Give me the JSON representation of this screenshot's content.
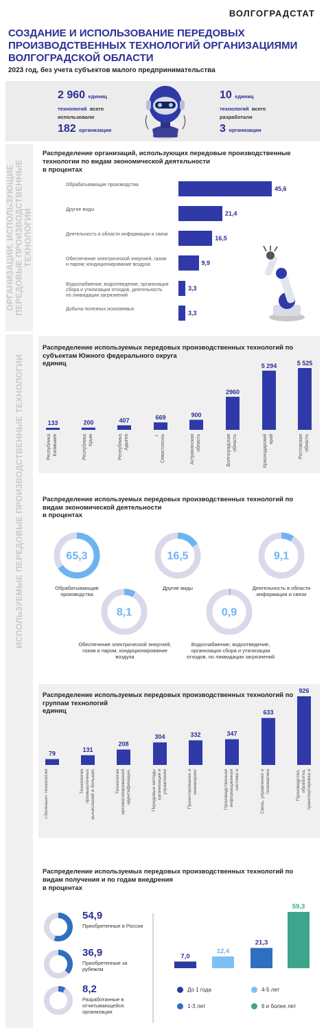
{
  "header": {
    "brand": "ВОЛГОГРАДСТАТ",
    "title": "СОЗДАНИЕ И ИСПОЛЬЗОВАНИЕ ПЕРЕДОВЫХ ПРОИЗВОДСТВЕННЫХ ТЕХНОЛОГИЙ ОРГАНИЗАЦИЯМИ ВОЛГОГРАДСКОЙ ОБЛАСТИ",
    "subtitle": "2023 год, без учета субъектов малого предпринимательства"
  },
  "summary": {
    "used_value": "2 960",
    "used_unit": "единиц",
    "used_text1": "технологий",
    "used_text2": "всего",
    "used_text3": "использовали",
    "used_orgs_value": "182",
    "used_orgs_unit": "организации",
    "dev_value": "10",
    "dev_unit": "единиц",
    "dev_text1": "технологий",
    "dev_text2": "всего",
    "dev_text3": "разработали",
    "dev_orgs_value": "3",
    "dev_orgs_unit": "организации"
  },
  "side_labels": {
    "orgs": "ОРГАНИЗАЦИИ, ИСПОЛЬЗУЮЩИЕ ПЕРЕДОВЫЕ ПРОИЗВОДСТВЕННЫЕ ТЕХНОЛОГИИ",
    "tech": "ИСПОЛЬЗУЕМЫЕ ПЕРЕДОВЫЕ ПРОИЗВОДСТВЕННЫЕ ТЕХНОЛОГИИ"
  },
  "colors": {
    "accent": "#2b2f93",
    "bar": "#2f3aa8",
    "light_blue": "#6db3f2",
    "mid_blue": "#2f6fc0",
    "teal": "#3fa48c",
    "donut_track": "#d9d9ea",
    "icons": [
      "robot-head-icon",
      "robot-arm-icon"
    ]
  },
  "chart_data": [
    {
      "type": "bar",
      "orientation": "horizontal",
      "title": "Распределение организаций, использующих передовые производственные технологии по видам экономической деятельности",
      "unit_label": "в процентах",
      "categories": [
        "Обрабатывающие производства",
        "Другие виды",
        "Деятельность в области информации и связи",
        "Обеспечение электрической энергией, газом и паром; кондиционирование воздуха",
        "Водоснабжение; водоотведение, организация сбора и утилизации отходов, деятельность по ликвидации загрязнений",
        "Добыча полезных ископаемых"
      ],
      "values": [
        45.6,
        21.4,
        16.5,
        9.9,
        3.3,
        3.3
      ],
      "value_labels": [
        "45,6",
        "21,4",
        "16,5",
        "9,9",
        "3,3",
        "3,3"
      ]
    },
    {
      "type": "bar",
      "title": "Распределение используемых передовых производственных технологий по субъектам Южного федерального округа",
      "unit_label": "единиц",
      "categories": [
        "Республика Калмыкия",
        "Республика Крым",
        "Республика Адыгея",
        "г. Севастополь",
        "Астраханская область",
        "Волгоградская область",
        "Краснодарский край",
        "Ростовская область"
      ],
      "values": [
        133,
        200,
        407,
        669,
        900,
        2960,
        5294,
        5525
      ],
      "value_labels": [
        "133",
        "200",
        "407",
        "669",
        "900",
        "2960",
        "5 294",
        "5 525"
      ],
      "ylim": [
        0,
        5525
      ]
    },
    {
      "type": "pie",
      "style": "donut",
      "title": "Распределение используемых передовых производственных технологий по видам экономической деятельности",
      "unit_label": "в процентах",
      "categories": [
        "Обрабатывающие производства",
        "Другие виды",
        "Деятельность в области информации и связи",
        "Обеспечение электрической энергией, газом и паром, кондиционирование воздуха",
        "Водоснабжение; водоотведение, организация сбора и утилизации отходов, по ликвидации загрязнений"
      ],
      "values": [
        65.3,
        16.5,
        9.1,
        8.1,
        0.9
      ],
      "value_labels": [
        "65,3",
        "16,5",
        "9,1",
        "8,1",
        "0,9"
      ]
    },
    {
      "type": "bar",
      "title": "Распределение используемых передовых производственных технологий по группам технологий",
      "unit_label": "единиц",
      "categories": [
        "«Зеленые» технологии",
        "Технологии промышленных вычислений и больших данных",
        "Технологии автоматизированной идентификации, наблюдения и/или контроля",
        "Передовые методы организации и управления производством",
        "Проектирование и инжиниринг",
        "Производственная информационная система и автоматизация управления производством",
        "Связь, управление и телематика",
        "Производство, обработка, транспортировка и сборка"
      ],
      "values": [
        79,
        131,
        208,
        304,
        332,
        347,
        633,
        926
      ],
      "value_labels": [
        "79",
        "131",
        "208",
        "304",
        "332",
        "347",
        "633",
        "926"
      ],
      "ylim": [
        0,
        926
      ]
    },
    {
      "type": "pie",
      "style": "donut",
      "title": "Распределение используемых передовых производственных технологий по видам получения и по годам внедрения",
      "unit_label": "в процентах",
      "categories": [
        "Приобретенные в России",
        "Приобретенные за рубежом",
        "Разработанные в отчитывающейся организации"
      ],
      "values": [
        54.9,
        36.9,
        8.2
      ],
      "value_labels": [
        "54,9",
        "36,9",
        "8,2"
      ]
    },
    {
      "type": "bar",
      "title": "",
      "categories": [
        "До 1 года",
        "4-5 лет",
        "1-3 лет",
        "6 и более лет"
      ],
      "values": [
        7.0,
        12.4,
        21.3,
        59.3
      ],
      "value_labels": [
        "7,0",
        "12,4",
        "21,3",
        "59,3"
      ],
      "colors": [
        "#2b3aa0",
        "#7cc0f5",
        "#2f6fc0",
        "#3fa48c"
      ],
      "legend": [
        "До 1 года",
        "1-3 лет",
        "4-5 лет",
        "6 и более лет"
      ],
      "legend_placement": "bottom",
      "ylim": [
        0,
        59.3
      ]
    }
  ]
}
